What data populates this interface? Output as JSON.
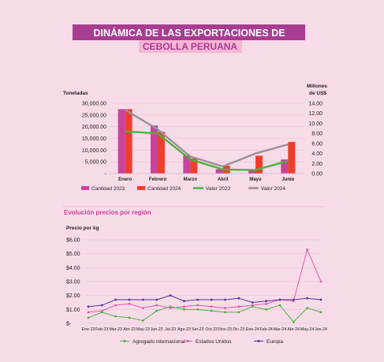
{
  "title_line1": "DINÁMICA DE LAS EXPORTACIONES  DE",
  "title_line2": "CEBOLLA PERUANA",
  "colors": {
    "title_bg1": "#a83c91",
    "title_bg2": "#f6b6d6",
    "cantidad_2023": "#c8449b",
    "cantidad_2024": "#ef3e2e",
    "valor_2023": "#4ab33a",
    "valor_2024": "#9a8f97",
    "agregado": "#4ab33a",
    "estados_unidos": "#e25aa7",
    "europa": "#55329b",
    "section_title": "#c8449b"
  },
  "chart_data": [
    {
      "type": "bar",
      "categories": [
        "Enero",
        "Febrero",
        "Marzo",
        "Abril",
        "Mayo",
        "Junio"
      ],
      "left_axis_label": "Toneladas",
      "right_axis_label_line1": "Millones",
      "right_axis_label_line2": "de US$",
      "ylim": [
        0,
        30000
      ],
      "y2lim": [
        0,
        14
      ],
      "y_ticks": [
        "30,000.00",
        "25,000.00",
        "20,000.00",
        "15,000.00",
        "10,000.00",
        "5,000.00",
        "-"
      ],
      "y2_ticks": [
        "14.00",
        "12.00",
        "10.00",
        "8.00",
        "6.00",
        "4.00",
        "2.00",
        "0.00"
      ],
      "series": [
        {
          "name": "Cantidad 2023",
          "kind": "bar",
          "axis": "left",
          "values": [
            27500,
            20500,
            7800,
            1800,
            1800,
            6000
          ]
        },
        {
          "name": "Cantidad 2024",
          "kind": "bar",
          "axis": "left",
          "values": [
            27500,
            17800,
            6500,
            3300,
            7600,
            13500
          ]
        },
        {
          "name": "Valor 2023",
          "kind": "line",
          "axis": "right",
          "values": [
            8.4,
            8.0,
            2.8,
            0.8,
            0.7,
            2.5
          ]
        },
        {
          "name": "Valor 2024",
          "kind": "line",
          "axis": "right",
          "values": [
            12.7,
            8.8,
            3.4,
            1.4,
            4.0,
            5.8
          ]
        }
      ]
    },
    {
      "type": "line",
      "title": "Evolución precios por región",
      "ylabel": "Precio por kg",
      "categories": [
        "Ene-23",
        "Feb-23",
        "Mar-23",
        "Abr-23",
        "May-23",
        "Jun-23",
        "Jul-23",
        "Ago-23",
        "Set-23",
        "Oct-23",
        "Nov-23",
        "Dic-23",
        "Ene-24",
        "Feb-24",
        "Mar-24",
        "Abr-24",
        "May-24",
        "Jun-24"
      ],
      "ylim": [
        0,
        6
      ],
      "y_ticks": [
        "$6.00",
        "$5.00",
        "$4.00",
        "$3.00",
        "$2.00",
        "$1.00",
        "$-"
      ],
      "series": [
        {
          "name": "Agregado internacional",
          "values": [
            0.4,
            0.8,
            0.5,
            0.4,
            0.2,
            0.9,
            1.2,
            1.0,
            1.0,
            0.9,
            0.8,
            0.8,
            1.2,
            1.0,
            1.3,
            0.1,
            1.1,
            0.8
          ]
        },
        {
          "name": "Estados Unidos",
          "values": [
            0.8,
            0.9,
            1.3,
            1.4,
            1.1,
            1.3,
            1.1,
            1.2,
            1.3,
            1.2,
            1.1,
            1.2,
            1.3,
            1.4,
            1.7,
            1.6,
            5.3,
            3.0
          ]
        },
        {
          "name": "Europa",
          "values": [
            1.2,
            1.3,
            1.7,
            1.7,
            1.7,
            1.7,
            2.0,
            1.6,
            1.7,
            1.7,
            1.7,
            1.8,
            1.5,
            1.6,
            1.7,
            1.7,
            1.8,
            1.7
          ]
        }
      ]
    }
  ]
}
